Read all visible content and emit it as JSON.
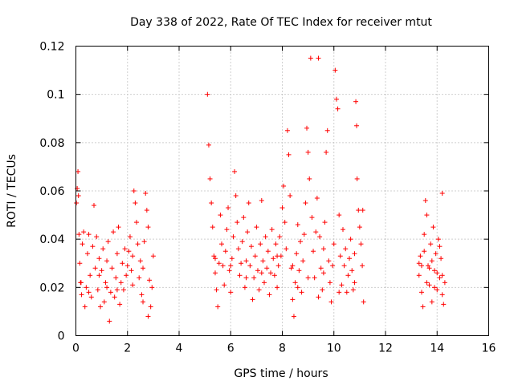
{
  "chart_data": {
    "type": "scatter",
    "title": "Day 338 of 2022, Rate Of TEC Index for receiver mtut",
    "xlabel": "GPS time / hours",
    "ylabel": "ROTI / TECUs",
    "xlim": [
      0,
      16
    ],
    "ylim": [
      0,
      0.12
    ],
    "xticks": [
      0,
      2,
      4,
      6,
      8,
      10,
      12,
      14,
      16
    ],
    "xtick_labels": [
      "0",
      "2",
      "4",
      "6",
      "8",
      "10",
      "12",
      "14",
      "16"
    ],
    "yticks": [
      0,
      0.02,
      0.04,
      0.06,
      0.08,
      0.1,
      0.12
    ],
    "ytick_labels": [
      "0",
      "0.02",
      "0.04",
      "0.06",
      "0.08",
      "0.1",
      "0.12"
    ],
    "grid": true,
    "marker": "plus",
    "color": "#ff0000",
    "series": [
      {
        "name": "ROTI",
        "points": [
          [
            0.02,
            0.055
          ],
          [
            0.05,
            0.061
          ],
          [
            0.08,
            0.068
          ],
          [
            0.1,
            0.058
          ],
          [
            0.12,
            0.042
          ],
          [
            0.15,
            0.03
          ],
          [
            0.18,
            0.022
          ],
          [
            0.22,
            0.017
          ],
          [
            0.25,
            0.038
          ],
          [
            0.3,
            0.043
          ],
          [
            0.35,
            0.012
          ],
          [
            0.4,
            0.02
          ],
          [
            0.45,
            0.034
          ],
          [
            0.5,
            0.042
          ],
          [
            0.55,
            0.025
          ],
          [
            0.6,
            0.016
          ],
          [
            0.65,
            0.037
          ],
          [
            0.7,
            0.054
          ],
          [
            0.75,
            0.028
          ],
          [
            0.8,
            0.041
          ],
          [
            0.85,
            0.019
          ],
          [
            0.9,
            0.032
          ],
          [
            0.95,
            0.012
          ],
          [
            1.0,
            0.027
          ],
          [
            1.05,
            0.036
          ],
          [
            1.1,
            0.014
          ],
          [
            1.15,
            0.022
          ],
          [
            1.2,
            0.031
          ],
          [
            1.25,
            0.039
          ],
          [
            1.3,
            0.006
          ],
          [
            1.35,
            0.018
          ],
          [
            1.4,
            0.028
          ],
          [
            1.45,
            0.043
          ],
          [
            1.5,
            0.016
          ],
          [
            1.55,
            0.024
          ],
          [
            1.6,
            0.034
          ],
          [
            1.65,
            0.045
          ],
          [
            1.7,
            0.013
          ],
          [
            1.75,
            0.022
          ],
          [
            1.8,
            0.03
          ],
          [
            1.85,
            0.019
          ],
          [
            1.9,
            0.036
          ],
          [
            1.95,
            0.025
          ],
          [
            2.0,
            0.029
          ],
          [
            2.05,
            0.035
          ],
          [
            2.1,
            0.041
          ],
          [
            2.15,
            0.027
          ],
          [
            2.2,
            0.033
          ],
          [
            2.25,
            0.06
          ],
          [
            2.3,
            0.055
          ],
          [
            2.35,
            0.047
          ],
          [
            2.4,
            0.038
          ],
          [
            2.45,
            0.024
          ],
          [
            2.5,
            0.031
          ],
          [
            2.55,
            0.017
          ],
          [
            2.6,
            0.028
          ],
          [
            2.65,
            0.039
          ],
          [
            2.7,
            0.059
          ],
          [
            2.75,
            0.052
          ],
          [
            2.8,
            0.045
          ],
          [
            2.85,
            0.023
          ],
          [
            2.9,
            0.012
          ],
          [
            2.95,
            0.02
          ],
          [
            3.0,
            0.033
          ],
          [
            0.2,
            0.022
          ],
          [
            0.5,
            0.018
          ],
          [
            0.9,
            0.025
          ],
          [
            1.2,
            0.02
          ],
          [
            1.6,
            0.019
          ],
          [
            2.2,
            0.021
          ],
          [
            2.6,
            0.014
          ],
          [
            2.8,
            0.008
          ],
          [
            5.1,
            0.1
          ],
          [
            5.15,
            0.079
          ],
          [
            5.2,
            0.065
          ],
          [
            5.25,
            0.055
          ],
          [
            5.3,
            0.045
          ],
          [
            5.35,
            0.033
          ],
          [
            5.4,
            0.026
          ],
          [
            5.45,
            0.019
          ],
          [
            5.5,
            0.012
          ],
          [
            5.55,
            0.03
          ],
          [
            5.6,
            0.05
          ],
          [
            5.65,
            0.038
          ],
          [
            5.7,
            0.029
          ],
          [
            5.75,
            0.021
          ],
          [
            5.8,
            0.035
          ],
          [
            5.85,
            0.044
          ],
          [
            5.9,
            0.053
          ],
          [
            5.95,
            0.027
          ],
          [
            6.0,
            0.018
          ],
          [
            6.05,
            0.032
          ],
          [
            6.1,
            0.041
          ],
          [
            6.15,
            0.068
          ],
          [
            6.2,
            0.058
          ],
          [
            6.25,
            0.047
          ],
          [
            6.3,
            0.036
          ],
          [
            6.35,
            0.025
          ],
          [
            6.4,
            0.03
          ],
          [
            6.45,
            0.039
          ],
          [
            6.5,
            0.049
          ],
          [
            6.55,
            0.02
          ],
          [
            6.6,
            0.031
          ],
          [
            6.65,
            0.043
          ],
          [
            6.7,
            0.055
          ],
          [
            6.75,
            0.029
          ],
          [
            6.8,
            0.037
          ],
          [
            6.85,
            0.015
          ],
          [
            6.9,
            0.024
          ],
          [
            6.95,
            0.033
          ],
          [
            7.0,
            0.045
          ],
          [
            7.05,
            0.027
          ],
          [
            7.1,
            0.019
          ],
          [
            7.15,
            0.038
          ],
          [
            7.2,
            0.056
          ],
          [
            7.25,
            0.031
          ],
          [
            7.3,
            0.022
          ],
          [
            7.35,
            0.041
          ],
          [
            7.4,
            0.028
          ],
          [
            7.45,
            0.035
          ],
          [
            7.5,
            0.017
          ],
          [
            7.55,
            0.026
          ],
          [
            7.6,
            0.044
          ],
          [
            7.65,
            0.032
          ],
          [
            7.7,
            0.025
          ],
          [
            7.75,
            0.038
          ],
          [
            7.8,
            0.02
          ],
          [
            7.85,
            0.029
          ],
          [
            7.9,
            0.041
          ],
          [
            7.95,
            0.033
          ],
          [
            8.0,
            0.053
          ],
          [
            8.05,
            0.062
          ],
          [
            8.1,
            0.047
          ],
          [
            8.15,
            0.036
          ],
          [
            8.2,
            0.085
          ],
          [
            8.25,
            0.075
          ],
          [
            8.3,
            0.058
          ],
          [
            8.35,
            0.028
          ],
          [
            8.4,
            0.015
          ],
          [
            8.45,
            0.008
          ],
          [
            8.5,
            0.022
          ],
          [
            8.55,
            0.034
          ],
          [
            8.6,
            0.046
          ],
          [
            8.65,
            0.027
          ],
          [
            8.7,
            0.039
          ],
          [
            8.75,
            0.018
          ],
          [
            8.8,
            0.031
          ],
          [
            8.85,
            0.042
          ],
          [
            8.9,
            0.055
          ],
          [
            8.95,
            0.086
          ],
          [
            9.0,
            0.076
          ],
          [
            9.05,
            0.065
          ],
          [
            9.1,
            0.115
          ],
          [
            9.15,
            0.049
          ],
          [
            9.2,
            0.035
          ],
          [
            9.25,
            0.024
          ],
          [
            9.3,
            0.043
          ],
          [
            9.35,
            0.057
          ],
          [
            9.4,
            0.115
          ],
          [
            9.45,
            0.041
          ],
          [
            9.5,
            0.028
          ],
          [
            9.55,
            0.019
          ],
          [
            9.6,
            0.036
          ],
          [
            9.65,
            0.047
          ],
          [
            9.7,
            0.076
          ],
          [
            9.75,
            0.085
          ],
          [
            9.8,
            0.031
          ],
          [
            9.85,
            0.022
          ],
          [
            9.9,
            0.014
          ],
          [
            9.95,
            0.029
          ],
          [
            10.0,
            0.038
          ],
          [
            10.05,
            0.11
          ],
          [
            10.1,
            0.098
          ],
          [
            10.15,
            0.094
          ],
          [
            10.2,
            0.05
          ],
          [
            10.25,
            0.033
          ],
          [
            10.3,
            0.021
          ],
          [
            10.35,
            0.044
          ],
          [
            10.4,
            0.029
          ],
          [
            10.45,
            0.036
          ],
          [
            10.5,
            0.018
          ],
          [
            10.55,
            0.025
          ],
          [
            10.6,
            0.032
          ],
          [
            10.65,
            0.04
          ],
          [
            10.7,
            0.027
          ],
          [
            10.75,
            0.019
          ],
          [
            10.8,
            0.034
          ],
          [
            10.85,
            0.097
          ],
          [
            10.88,
            0.087
          ],
          [
            10.9,
            0.065
          ],
          [
            10.95,
            0.052
          ],
          [
            11.0,
            0.045
          ],
          [
            11.05,
            0.038
          ],
          [
            11.1,
            0.029
          ],
          [
            11.12,
            0.052
          ],
          [
            11.15,
            0.014
          ],
          [
            5.4,
            0.032
          ],
          [
            6.0,
            0.029
          ],
          [
            6.6,
            0.024
          ],
          [
            7.2,
            0.026
          ],
          [
            7.8,
            0.033
          ],
          [
            8.4,
            0.029
          ],
          [
            9.0,
            0.024
          ],
          [
            9.6,
            0.026
          ],
          [
            10.2,
            0.018
          ],
          [
            10.8,
            0.022
          ],
          [
            8.6,
            0.02
          ],
          [
            9.4,
            0.016
          ],
          [
            13.3,
            0.025
          ],
          [
            13.35,
            0.033
          ],
          [
            13.4,
            0.018
          ],
          [
            13.45,
            0.012
          ],
          [
            13.5,
            0.042
          ],
          [
            13.55,
            0.056
          ],
          [
            13.6,
            0.05
          ],
          [
            13.65,
            0.029
          ],
          [
            13.7,
            0.021
          ],
          [
            13.75,
            0.038
          ],
          [
            13.8,
            0.014
          ],
          [
            13.85,
            0.045
          ],
          [
            13.9,
            0.027
          ],
          [
            13.95,
            0.034
          ],
          [
            14.0,
            0.019
          ],
          [
            14.05,
            0.04
          ],
          [
            14.1,
            0.024
          ],
          [
            14.15,
            0.032
          ],
          [
            14.2,
            0.059
          ],
          [
            14.25,
            0.013
          ],
          [
            14.3,
            0.022
          ],
          [
            13.4,
            0.029
          ],
          [
            13.6,
            0.022
          ],
          [
            13.8,
            0.031
          ],
          [
            14.0,
            0.026
          ],
          [
            14.2,
            0.017
          ],
          [
            13.5,
            0.035
          ],
          [
            13.7,
            0.028
          ],
          [
            13.9,
            0.02
          ],
          [
            14.1,
            0.037
          ],
          [
            14.2,
            0.025
          ],
          [
            13.3,
            0.03
          ]
        ]
      }
    ]
  }
}
